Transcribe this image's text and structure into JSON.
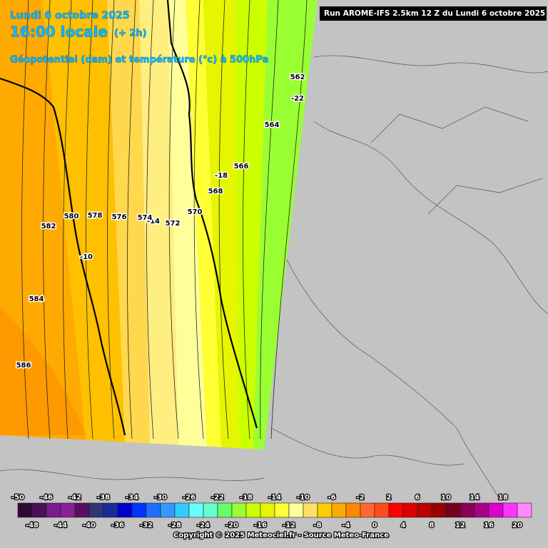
{
  "header": {
    "date": "Lundi 6 octobre 2025",
    "time": "16:00 locale",
    "offset": "(+ 2h)",
    "field": "Géopotentiel (dam) et température (°c) à 500hPa",
    "run": "Run AROME-IFS 2.5km 12 Z du Lundi 6 octobre 2025"
  },
  "map": {
    "contour_labels": [
      "562",
      "-22",
      "564",
      "566",
      "-18",
      "568",
      "570",
      "572",
      "-14",
      "574",
      "576",
      "578",
      "580",
      "582",
      "-10",
      "584",
      "586"
    ]
  },
  "legend": {
    "colors": [
      "#2d0a33",
      "#4b0f55",
      "#7a1a8c",
      "#8a1f94",
      "#5a0f5e",
      "#2f3575",
      "#1a2a9a",
      "#0000cc",
      "#0033ff",
      "#1f6fff",
      "#3399ff",
      "#33ccff",
      "#66ffff",
      "#66ffcc",
      "#66ff66",
      "#99ff33",
      "#ccff00",
      "#e6f500",
      "#ffff33",
      "#ffff99",
      "#ffe066",
      "#ffcc00",
      "#ffaa00",
      "#ff8800",
      "#ff6633",
      "#ff4d1a",
      "#ff0000",
      "#dd0000",
      "#bb0000",
      "#990000",
      "#770022",
      "#880055",
      "#aa0088",
      "#dd00cc",
      "#ff33ff",
      "#ff88ff"
    ],
    "top_ticks": [
      -50,
      -46,
      -42,
      -38,
      -34,
      -30,
      -26,
      -22,
      -18,
      -14,
      -10,
      -6,
      -2,
      2,
      6,
      10,
      14,
      18
    ],
    "bottom_ticks": [
      -48,
      -44,
      -40,
      -36,
      -32,
      -28,
      -24,
      -20,
      -16,
      -12,
      -8,
      -4,
      0,
      4,
      8,
      12,
      16,
      20
    ]
  },
  "footer": {
    "copyright": "Copyright © 2025 Meteociel.fr - Source Meteo-France"
  }
}
